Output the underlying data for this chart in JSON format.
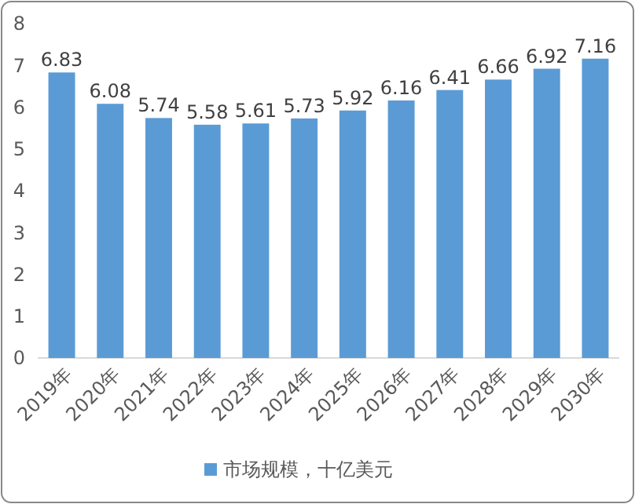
{
  "chart_data": {
    "type": "bar",
    "categories": [
      "2019年",
      "2020年",
      "2021年",
      "2022年",
      "2023年",
      "2024年",
      "2025年",
      "2026年",
      "2027年",
      "2028年",
      "2029年",
      "2030年"
    ],
    "series": [
      {
        "name": "市场规模，十亿美元",
        "color": "#5b9bd5",
        "values": [
          6.83,
          6.08,
          5.74,
          5.58,
          5.61,
          5.73,
          5.92,
          6.16,
          6.41,
          6.66,
          6.92,
          7.16
        ]
      }
    ],
    "ylim": [
      0,
      8
    ],
    "yticks": [
      0,
      1,
      2,
      3,
      4,
      5,
      6,
      7,
      8
    ],
    "data_labels": true,
    "legend": "bottom",
    "grid": false
  }
}
